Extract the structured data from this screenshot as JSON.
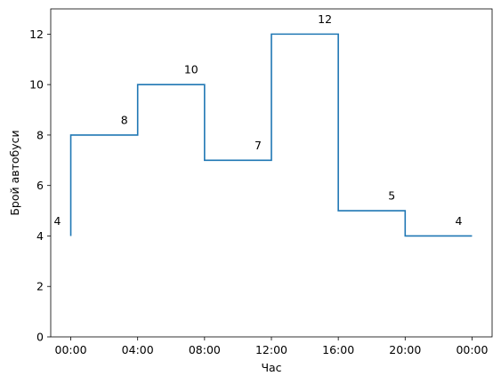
{
  "chart_data": {
    "type": "line",
    "step": "post",
    "xlabel": "Час",
    "ylabel": "Брой автобуси",
    "x_tick_labels": [
      "00:00",
      "04:00",
      "08:00",
      "12:00",
      "16:00",
      "20:00",
      "00:00"
    ],
    "x_hours": [
      0,
      4,
      8,
      12,
      16,
      20,
      24
    ],
    "xlim": [
      -1.2,
      25.2
    ],
    "ylim": [
      0,
      13
    ],
    "y_ticks": [
      0,
      2,
      4,
      6,
      8,
      10,
      12
    ],
    "grid": false,
    "series": [
      {
        "color": "#1f77b4",
        "points": [
          {
            "hour": 0,
            "value": 4
          },
          {
            "hour": 0,
            "value": 8
          },
          {
            "hour": 4,
            "value": 10
          },
          {
            "hour": 8,
            "value": 7
          },
          {
            "hour": 12,
            "value": 12
          },
          {
            "hour": 16,
            "value": 5
          },
          {
            "hour": 20,
            "value": 4
          },
          {
            "hour": 24,
            "value": 4
          }
        ]
      }
    ],
    "annotations": [
      {
        "text": "4",
        "hour": -0.8,
        "value": 4.6
      },
      {
        "text": "8",
        "hour": 3.2,
        "value": 8.6
      },
      {
        "text": "10",
        "hour": 7.2,
        "value": 10.6
      },
      {
        "text": "7",
        "hour": 11.2,
        "value": 7.6
      },
      {
        "text": "12",
        "hour": 15.2,
        "value": 12.6
      },
      {
        "text": "5",
        "hour": 19.2,
        "value": 5.6
      },
      {
        "text": "4",
        "hour": 23.2,
        "value": 4.6
      }
    ]
  }
}
